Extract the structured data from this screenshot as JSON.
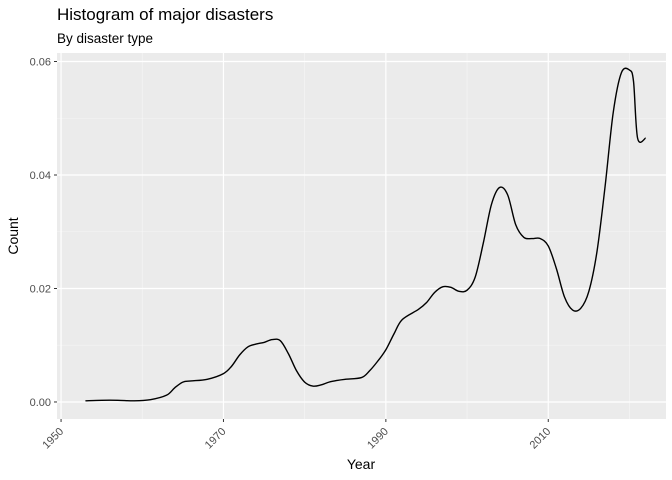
{
  "chart_data": {
    "type": "line",
    "title": "Histogram of major disasters",
    "subtitle": "By disaster type",
    "xlabel": "Year",
    "ylabel": "Count",
    "xlim": [
      1949.5,
      2024.5
    ],
    "ylim": [
      -0.003,
      0.0615
    ],
    "x_ticks": [
      1950,
      1970,
      1990,
      2010
    ],
    "x_tick_labels": [
      "1950",
      "1970",
      "1990",
      "2010"
    ],
    "y_ticks": [
      0.0,
      0.02,
      0.04,
      0.06
    ],
    "y_tick_labels": [
      "0.00",
      "0.02",
      "0.04",
      "0.06"
    ],
    "grid": true,
    "series": [
      {
        "x": [
          1953,
          1955,
          1957,
          1959,
          1961,
          1963,
          1964,
          1965,
          1966,
          1968,
          1970,
          1971,
          1972,
          1973,
          1974,
          1975,
          1976,
          1977,
          1978,
          1979,
          1980,
          1981,
          1982,
          1983,
          1984,
          1985,
          1987,
          1988,
          1989,
          1990,
          1991,
          1992,
          1994,
          1995,
          1996,
          1997,
          1998,
          1999,
          2000,
          2001,
          2002,
          2003,
          2004,
          2005,
          2006,
          2007,
          2008,
          2009,
          2010,
          2011,
          2012,
          2013,
          2014,
          2015,
          2016,
          2017,
          2018,
          2019,
          2020,
          2020.5,
          2021,
          2022
        ],
        "y": [
          0.0002,
          0.0003,
          0.0003,
          0.0002,
          0.0004,
          0.0012,
          0.0025,
          0.0035,
          0.0037,
          0.004,
          0.005,
          0.0063,
          0.0083,
          0.0097,
          0.0102,
          0.0105,
          0.011,
          0.0108,
          0.0085,
          0.0055,
          0.0035,
          0.0028,
          0.003,
          0.0035,
          0.0038,
          0.004,
          0.0043,
          0.0055,
          0.0072,
          0.0092,
          0.012,
          0.0145,
          0.0163,
          0.0175,
          0.0193,
          0.0203,
          0.0202,
          0.0195,
          0.0197,
          0.022,
          0.028,
          0.0348,
          0.0378,
          0.0365,
          0.0312,
          0.029,
          0.0288,
          0.0288,
          0.0275,
          0.0235,
          0.0185,
          0.0162,
          0.0165,
          0.0195,
          0.0265,
          0.038,
          0.051,
          0.058,
          0.0585,
          0.0565,
          0.0465,
          0.0465
        ]
      }
    ]
  }
}
